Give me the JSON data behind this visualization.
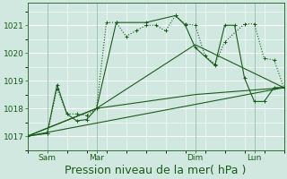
{
  "background_color": "#d0e8e0",
  "grid_color": "#ffffff",
  "line_color": "#1a5c1a",
  "xlabel": "Pression niveau de la mer( hPa )",
  "xlabel_fontsize": 9,
  "ylim": [
    1016.5,
    1021.8
  ],
  "xlim": [
    0,
    13
  ],
  "yticks": [
    1017,
    1018,
    1019,
    1020,
    1021
  ],
  "xtick_positions": [
    1,
    3.5,
    8.5,
    11.5
  ],
  "xtick_labels": [
    "Sam",
    "Mar",
    "Dim",
    "Lun"
  ],
  "vlines": [
    1,
    3.5,
    8.5,
    11.5
  ],
  "series1_x": [
    0,
    1,
    1.5,
    2,
    2.5,
    3,
    3.5,
    4,
    4.5,
    5,
    5.5,
    6,
    6.5,
    7,
    7.5,
    8,
    8.5,
    9,
    9.5,
    10,
    11,
    11.5,
    12,
    12.5,
    13
  ],
  "series1_y": [
    1017.0,
    1017.1,
    1018.7,
    1017.8,
    1017.8,
    1017.75,
    1018.0,
    1021.1,
    1021.1,
    1020.6,
    1020.8,
    1021.0,
    1021.0,
    1020.8,
    1021.35,
    1021.05,
    1021.0,
    1019.9,
    1019.6,
    1020.4,
    1021.05,
    1021.05,
    1019.8,
    1019.75,
    1018.75
  ],
  "series2_x": [
    0,
    1,
    1.5,
    2,
    2.5,
    3,
    3.5,
    4.5,
    6,
    7.5,
    8,
    8.5,
    9.5,
    10,
    10.5,
    11,
    11.5,
    12,
    12.5,
    13
  ],
  "series2_y": [
    1017.0,
    1017.1,
    1018.85,
    1017.8,
    1017.55,
    1017.6,
    1018.0,
    1021.1,
    1021.1,
    1021.35,
    1021.0,
    1020.2,
    1019.55,
    1021.0,
    1021.0,
    1019.1,
    1018.25,
    1018.25,
    1018.75,
    1018.75
  ],
  "series3_x": [
    0,
    3.5,
    8.5,
    13
  ],
  "series3_y": [
    1017.0,
    1018.0,
    1020.3,
    1018.75
  ],
  "series4_x": [
    0,
    3.5,
    8.5,
    13
  ],
  "series4_y": [
    1017.0,
    1018.0,
    1018.5,
    1018.75
  ],
  "series5_x": [
    0,
    13
  ],
  "series5_y": [
    1017.0,
    1018.75
  ]
}
